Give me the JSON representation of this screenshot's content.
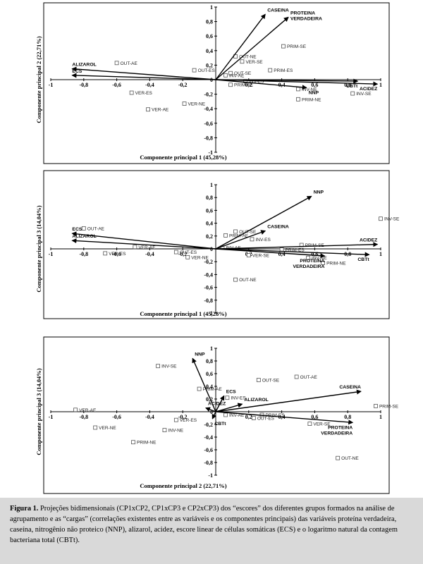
{
  "chart_data": [
    {
      "type": "scatter",
      "title": "",
      "xlabel": "Componente principal 1  (45,28%)",
      "ylabel": "Componente principal 2 (22,71%)",
      "xlim": [
        -1,
        1
      ],
      "ylim": [
        -1,
        1
      ],
      "x_ticks": [
        "-1",
        "-0,8",
        "-0,6",
        "-0,4",
        "-0,2",
        "0",
        "0,2",
        "0,4",
        "0,6",
        "0,8",
        "1"
      ],
      "y_ticks": [
        "-1",
        "-0,8",
        "-0,6",
        "-0,4",
        "-0,2",
        "0",
        "0,2",
        "0,4",
        "0,6",
        "0,8",
        "1"
      ],
      "scores": [
        {
          "label": "OUT-AE",
          "x": -0.6,
          "y": 0.23
        },
        {
          "label": "OUT-ES",
          "x": -0.13,
          "y": 0.13
        },
        {
          "label": "OUT-NE",
          "x": 0.12,
          "y": 0.32
        },
        {
          "label": "OUT-SE",
          "x": 0.09,
          "y": 0.09
        },
        {
          "label": "VER-SE",
          "x": 0.16,
          "y": 0.25
        },
        {
          "label": "VER-ES",
          "x": -0.51,
          "y": -0.18
        },
        {
          "label": "VER-AE",
          "x": -0.41,
          "y": -0.41
        },
        {
          "label": "VER-NE",
          "x": -0.19,
          "y": -0.33
        },
        {
          "label": "PRIM-SE",
          "x": 0.41,
          "y": 0.46
        },
        {
          "label": "PRIM-ES",
          "x": 0.33,
          "y": 0.13
        },
        {
          "label": "PRIM-AE",
          "x": 0.09,
          "y": -0.07
        },
        {
          "label": "PRIM-NE",
          "x": 0.5,
          "y": -0.27
        },
        {
          "label": "INV-SE",
          "x": 0.83,
          "y": -0.19
        },
        {
          "label": "INV-NE",
          "x": 0.5,
          "y": -0.13
        },
        {
          "label": "INV-ES",
          "x": 0.18,
          "y": -0.02
        },
        {
          "label": "INV-AE",
          "x": 0.06,
          "y": 0.06
        }
      ],
      "loadings": [
        {
          "label": "CASEINA",
          "x": 0.3,
          "y": 0.9
        },
        {
          "label": "PROTEINA VERDADEIRA",
          "x": 0.44,
          "y": 0.86
        },
        {
          "label": "NNP",
          "x": 0.55,
          "y": -0.11
        },
        {
          "label": "CBTt",
          "x": 0.86,
          "y": -0.02
        },
        {
          "label": "ACIDEZ",
          "x": 0.98,
          "y": -0.06
        },
        {
          "label": "ALIZAROL",
          "x": -0.87,
          "y": 0.15
        },
        {
          "label": "ECS",
          "x": -0.87,
          "y": 0.06
        }
      ]
    },
    {
      "type": "scatter",
      "title": "",
      "xlabel": "Componente principal 1 (45,28%)",
      "ylabel": "Componente principal 3 (14,04%)",
      "xlim": [
        -1,
        1
      ],
      "ylim": [
        -1,
        1
      ],
      "x_ticks": [
        "-1",
        "-0,8",
        "-0,6",
        "-0,4",
        "-0,2",
        "0",
        "0,2",
        "0,4",
        "0,6",
        "0,8",
        "1"
      ],
      "y_ticks": [
        "-1",
        "-0,8",
        "-0,6",
        "-0,4",
        "-0,2",
        "0",
        "0,2",
        "0,4",
        "0,6",
        "0,8",
        "1"
      ],
      "scores": [
        {
          "label": "OUT-AE",
          "x": -0.8,
          "y": 0.32
        },
        {
          "label": "OUT-SE",
          "x": 0.12,
          "y": 0.27
        },
        {
          "label": "OUT-ES",
          "x": -0.24,
          "y": -0.05
        },
        {
          "label": "OUT-NE",
          "x": 0.12,
          "y": -0.48
        },
        {
          "label": "VER-AE",
          "x": -0.49,
          "y": 0.03
        },
        {
          "label": "VER-ES",
          "x": -0.67,
          "y": -0.07
        },
        {
          "label": "VER-NE",
          "x": -0.17,
          "y": -0.13
        },
        {
          "label": "VER-SE",
          "x": 0.2,
          "y": -0.1
        },
        {
          "label": "PRIM-AE",
          "x": 0.06,
          "y": 0.21
        },
        {
          "label": "PRIM-ES",
          "x": 0.4,
          "y": -0.01
        },
        {
          "label": "PRIM-SE",
          "x": 0.52,
          "y": 0.06
        },
        {
          "label": "PRIM-NE",
          "x": 0.65,
          "y": -0.22
        },
        {
          "label": "INV-SE",
          "x": 1.0,
          "y": 0.47
        },
        {
          "label": "INV-ES",
          "x": 0.22,
          "y": 0.15
        },
        {
          "label": "INV-NE",
          "x": 0.56,
          "y": -0.14
        },
        {
          "label": "INV-AE",
          "x": 0.04,
          "y": 0.02
        }
      ],
      "loadings": [
        {
          "label": "NNP",
          "x": 0.58,
          "y": 0.82
        },
        {
          "label": "CASEINA",
          "x": 0.3,
          "y": 0.28
        },
        {
          "label": "ACIDEZ",
          "x": 0.98,
          "y": 0.07
        },
        {
          "label": "CBTt",
          "x": 0.93,
          "y": -0.09
        },
        {
          "label": "PROTEINA VERDADEIRA",
          "x": 0.66,
          "y": -0.11
        },
        {
          "label": "ECS",
          "x": -0.87,
          "y": 0.24
        },
        {
          "label": "ALIZAROL",
          "x": -0.87,
          "y": 0.13
        }
      ]
    },
    {
      "type": "scatter",
      "title": "",
      "xlabel": "Componente principal 2 (22,71%)",
      "ylabel": "Componente principal 3 (14,04%)",
      "xlim": [
        -1,
        1
      ],
      "ylim": [
        -1,
        1
      ],
      "x_ticks": [
        "-1",
        "-0,8",
        "-0,6",
        "-0,4",
        "-0,2",
        "0",
        "0,2",
        "0,4",
        "0,6",
        "0,8",
        "1"
      ],
      "y_ticks": [
        "-1",
        "-0,8",
        "-0,6",
        "-0,4",
        "-0,2",
        "0",
        "0,2",
        "0,4",
        "0,6",
        "0,8",
        "1"
      ],
      "scores": [
        {
          "label": "INV-SE",
          "x": -0.35,
          "y": 0.72
        },
        {
          "label": "OUT-SE",
          "x": 0.26,
          "y": 0.5
        },
        {
          "label": "OUT-AE",
          "x": 0.49,
          "y": 0.55
        },
        {
          "label": "PRIM-AE",
          "x": -0.1,
          "y": 0.36
        },
        {
          "label": "INV-ES",
          "x": 0.07,
          "y": 0.22
        },
        {
          "label": "PRIM-SE",
          "x": 0.97,
          "y": 0.09
        },
        {
          "label": "VER-AE",
          "x": -0.85,
          "y": 0.03
        },
        {
          "label": "VER-NE",
          "x": -0.73,
          "y": -0.25
        },
        {
          "label": "PRIM-NE",
          "x": -0.5,
          "y": -0.48
        },
        {
          "label": "INV-NE",
          "x": -0.31,
          "y": -0.29
        },
        {
          "label": "VER-ES",
          "x": -0.24,
          "y": -0.13
        },
        {
          "label": "INV-AE",
          "x": 0.06,
          "y": -0.05
        },
        {
          "label": "OUT-ES",
          "x": 0.23,
          "y": -0.1
        },
        {
          "label": "PRIM-ES",
          "x": 0.28,
          "y": -0.05
        },
        {
          "label": "VER-SE",
          "x": 0.57,
          "y": -0.19
        },
        {
          "label": "OUT-NE",
          "x": 0.74,
          "y": -0.73
        }
      ],
      "loadings": [
        {
          "label": "NNP",
          "x": -0.14,
          "y": 0.84
        },
        {
          "label": "ECS",
          "x": 0.05,
          "y": 0.25
        },
        {
          "label": "ALIZAROL",
          "x": 0.16,
          "y": 0.12
        },
        {
          "label": "ACIDEZ",
          "x": -0.06,
          "y": 0.06
        },
        {
          "label": "CBTt",
          "x": -0.02,
          "y": -0.11
        },
        {
          "label": "CASEINA",
          "x": 0.88,
          "y": 0.32
        },
        {
          "label": "PROTEINA VERDADEIRA",
          "x": 0.83,
          "y": -0.17
        }
      ]
    }
  ],
  "caption": {
    "figure_label": "Figura 1.",
    "text": " Projeções bidimensionais (CP1xCP2, CP1xCP3 e CP2xCP3) dos “escores” dos diferentes grupos formados na análise de agrupamento e as “cargas” (correlações existentes entre as variáveis e os componentes principais) das variáveis proteína verdadeira, caseína, nitrogênio não proteico (NNP), alizarol, acidez, escore linear de células somáticas (ECS) e o logaritmo natural da contagem bacteriana total (CBTt)."
  }
}
